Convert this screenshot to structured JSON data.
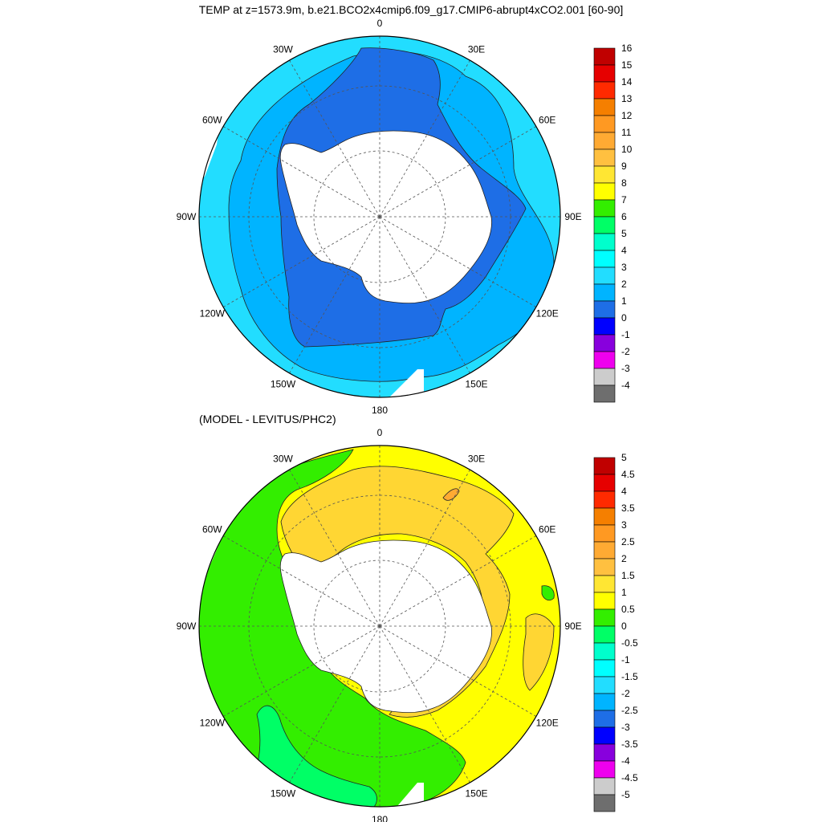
{
  "title": "TEMP at z=1573.9m, b.e21.BCO2x4cmip6.f09_g17.CMIP6-abrupt4xCO2.001 [60-90]",
  "subtitle": "(MODEL - LEVITUS/PHC2)",
  "longitude_labels": [
    "0",
    "30E",
    "60E",
    "90E",
    "120E",
    "150E",
    "180",
    "150W",
    "120W",
    "90W",
    "60W",
    "30W"
  ],
  "panels": [
    {
      "id": "temperature",
      "colorbar": {
        "labels": [
          "16",
          "15",
          "14",
          "13",
          "12",
          "11",
          "10",
          "9",
          "8",
          "7",
          "6",
          "5",
          "4",
          "3",
          "2",
          "1",
          "0",
          "-1",
          "-2",
          "-3",
          "-4"
        ],
        "colors": [
          "#c00000",
          "#e60000",
          "#ff2a00",
          "#f57f00",
          "#ff9922",
          "#ffaa33",
          "#ffc040",
          "#ffe633",
          "#ffff00",
          "#33ee00",
          "#00ff66",
          "#00ffcc",
          "#00ffff",
          "#22ddff",
          "#00b4ff",
          "#1e6ee6",
          "#0000ff",
          "#8800dd",
          "#ee00ee",
          "#cccccc",
          "#6e6e6e"
        ]
      },
      "map_colors": {
        "outer": "#22ddff",
        "middle": "#00b4ff",
        "inner": "#1e6ee6",
        "land": "#ffffff"
      }
    },
    {
      "id": "difference",
      "colorbar": {
        "labels": [
          "5",
          "4.5",
          "4",
          "3.5",
          "3",
          "2.5",
          "2",
          "1.5",
          "1",
          "0.5",
          "0",
          "-0.5",
          "-1",
          "-1.5",
          "-2",
          "-2.5",
          "-3",
          "-3.5",
          "-4",
          "-4.5",
          "-5"
        ],
        "colors": [
          "#c00000",
          "#e60000",
          "#ff2a00",
          "#f57f00",
          "#ff9922",
          "#ffaa33",
          "#ffc040",
          "#ffe633",
          "#ffff00",
          "#33ee00",
          "#00ff66",
          "#00ffcc",
          "#00ffff",
          "#22ddff",
          "#00b4ff",
          "#1e6ee6",
          "#0000ff",
          "#8800dd",
          "#ee00ee",
          "#cccccc",
          "#6e6e6e"
        ]
      },
      "map_colors": {
        "yellow": "#ffff00",
        "orange": "#ffd633",
        "dark_orange": "#ffaa33",
        "green": "#33ee00",
        "bright_green": "#00ff66",
        "land": "#ffffff"
      }
    }
  ]
}
